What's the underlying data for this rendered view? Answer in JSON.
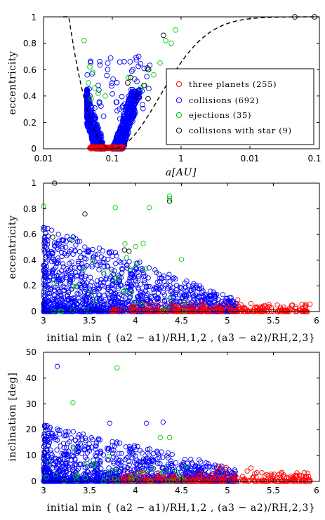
{
  "chart_data": [
    {
      "type": "scatter",
      "id": "top",
      "xlabel": "a[AU]",
      "ylabel": "eccentricity",
      "xlim": [
        0.01,
        0.1
      ],
      "ylim": [
        0,
        1
      ],
      "x_scale": "log-reciprocal (mirrored)",
      "x_tick_labels": [
        "0.01",
        "0.1",
        "1",
        "0.01",
        "0.1"
      ],
      "y_tick_labels": [
        "0",
        "0.2",
        "0.4",
        "0.6",
        "0.8",
        "1"
      ],
      "legend": {
        "placement": "right",
        "entries": [
          {
            "label": "three planets (255)",
            "color": "#ff0000"
          },
          {
            "label": "collisions (692)",
            "color": "#0000ff"
          },
          {
            "label": "ejections (35)",
            "color": "#00cc00"
          },
          {
            "label": "collisions with star (9)",
            "color": "#000000"
          }
        ]
      },
      "curve": {
        "style": "dashed",
        "color": "#000000"
      }
    },
    {
      "type": "scatter",
      "id": "middle",
      "xlabel": "initial min { (a2 − a1)/RH,1,2 , (a3 − a2)/RH,2,3}",
      "ylabel": "eccentricity",
      "xlim": [
        3,
        6
      ],
      "ylim": [
        0,
        1
      ],
      "x_tick_labels": [
        "3",
        "3.5",
        "4",
        "4.5",
        "5",
        "5.5",
        "6"
      ],
      "y_tick_labels": [
        "0",
        "0.2",
        "0.4",
        "0.6",
        "0.8",
        "1"
      ]
    },
    {
      "type": "scatter",
      "id": "bottom",
      "xlabel": "initial min { (a2 − a1)/RH,1,2 , (a3 − a2)/RH,2,3}",
      "ylabel": "inclination [deg]",
      "xlim": [
        3,
        6
      ],
      "ylim": [
        0,
        50
      ],
      "x_tick_labels": [
        "3",
        "3.5",
        "4",
        "4.5",
        "5",
        "5.5",
        "6"
      ],
      "y_tick_labels": [
        "0",
        "10",
        "20",
        "30",
        "40",
        "50"
      ]
    }
  ],
  "series_colors": {
    "three_planets": "#ff0000",
    "collisions": "#0000ff",
    "ejections": "#00cc00",
    "collisions_with_star": "#000000"
  }
}
